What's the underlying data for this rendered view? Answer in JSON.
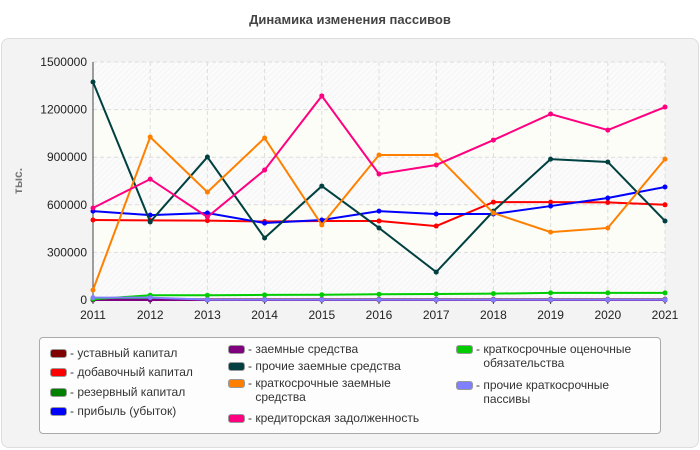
{
  "chart_data": {
    "type": "line",
    "title": "Динамика изменения пассивов",
    "ylabel": "тыс.",
    "xlabel": "",
    "x": [
      2011,
      2012,
      2013,
      2014,
      2015,
      2016,
      2017,
      2018,
      2019,
      2020,
      2021
    ],
    "ylim": [
      0,
      1500000
    ],
    "yticks": [
      0,
      300000,
      600000,
      900000,
      1200000,
      1500000
    ],
    "grid": true,
    "legend_placement": "bottom",
    "series": [
      {
        "name": "уставный капитал",
        "color": "#800000",
        "values": [
          5000,
          5000,
          5000,
          5000,
          5000,
          5000,
          5000,
          5000,
          5000,
          5000,
          5000
        ]
      },
      {
        "name": "добавочный капитал",
        "color": "#ff0000",
        "values": [
          504000,
          502000,
          500000,
          495000,
          498000,
          498000,
          466000,
          617000,
          617000,
          615000,
          600000
        ]
      },
      {
        "name": "резервный капитал",
        "color": "#008000",
        "values": [
          0,
          12000,
          0,
          0,
          0,
          0,
          0,
          0,
          0,
          0,
          0
        ]
      },
      {
        "name": "прибыль (убыток)",
        "color": "#0000ff",
        "values": [
          560000,
          535000,
          548000,
          485000,
          504000,
          560000,
          542000,
          542000,
          592000,
          643000,
          712000
        ]
      },
      {
        "name": "заемные средства",
        "color": "#800080",
        "values": [
          0,
          0,
          0,
          0,
          0,
          0,
          0,
          0,
          0,
          0,
          0
        ]
      },
      {
        "name": "прочие заемные средства",
        "color": "#004040",
        "values": [
          1374000,
          492000,
          901000,
          391000,
          718000,
          454000,
          176000,
          560000,
          888000,
          870000,
          498000
        ]
      },
      {
        "name": "краткосрочные заемные средства",
        "color": "#ff8000",
        "values": [
          63000,
          1027000,
          680000,
          1021000,
          473000,
          914000,
          914000,
          548000,
          428000,
          454000,
          888000
        ]
      },
      {
        "name": "кредиторская задолженность",
        "color": "#ff0080",
        "values": [
          580000,
          762000,
          523000,
          819000,
          1286000,
          794000,
          851000,
          1008000,
          1172000,
          1071000,
          1216000
        ]
      },
      {
        "name": "краткосрочные оценочные обязательства",
        "color": "#00cc00",
        "values": [
          5000,
          30000,
          30000,
          32000,
          33000,
          36000,
          38000,
          40000,
          45000,
          45000,
          45000
        ]
      },
      {
        "name": "прочие краткосрочные пассивы",
        "color": "#8080ff",
        "values": [
          15000,
          15000,
          2000,
          2000,
          2000,
          2000,
          2000,
          2000,
          2000,
          2000,
          2000
        ]
      }
    ]
  }
}
